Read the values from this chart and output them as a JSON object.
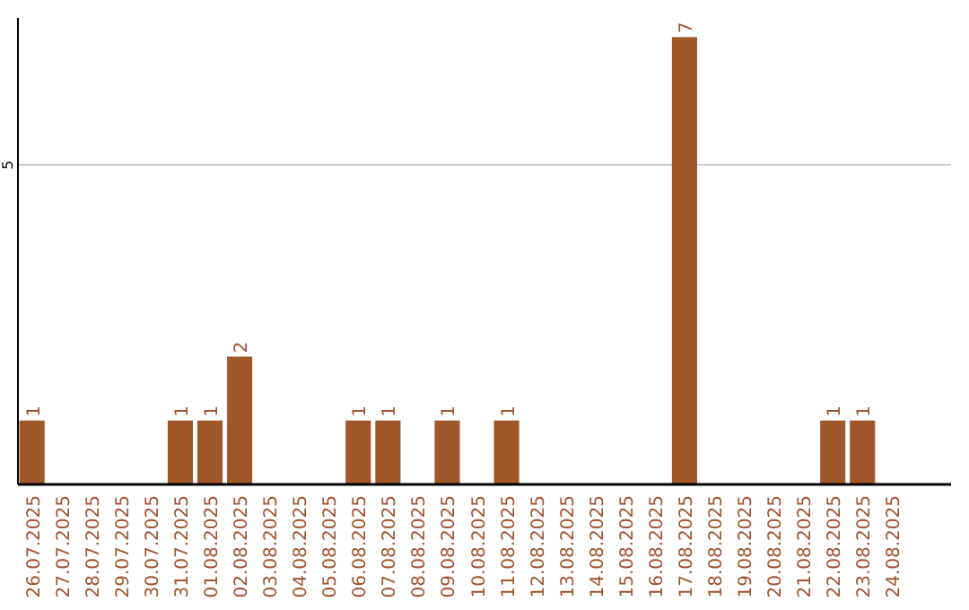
{
  "chart_data": {
    "type": "bar",
    "categories": [
      "26.07.2025",
      "27.07.2025",
      "28.07.2025",
      "29.07.2025",
      "30.07.2025",
      "31.07.2025",
      "01.08.2025",
      "02.08.2025",
      "03.08.2025",
      "04.08.2025",
      "05.08.2025",
      "06.08.2025",
      "07.08.2025",
      "08.08.2025",
      "09.08.2025",
      "10.08.2025",
      "11.08.2025",
      "12.08.2025",
      "13.08.2025",
      "14.08.2025",
      "15.08.2025",
      "16.08.2025",
      "17.08.2025",
      "18.08.2025",
      "19.08.2025",
      "20.08.2025",
      "21.08.2025",
      "22.08.2025",
      "23.08.2025",
      "24.08.2025"
    ],
    "values": [
      1,
      0,
      0,
      0,
      0,
      1,
      1,
      2,
      0,
      0,
      0,
      1,
      1,
      0,
      1,
      0,
      1,
      0,
      0,
      0,
      0,
      0,
      7,
      0,
      0,
      0,
      0,
      1,
      1,
      0
    ],
    "value_labels": [
      "1",
      null,
      null,
      null,
      null,
      "1",
      "1",
      "2",
      null,
      null,
      null,
      "1",
      "1",
      null,
      "1",
      null,
      "1",
      null,
      null,
      null,
      null,
      null,
      "7",
      null,
      null,
      null,
      null,
      "1",
      "1",
      null
    ],
    "color": "#a0572a",
    "ylim": [
      0,
      7.3
    ],
    "yticks": [
      5
    ],
    "grid": "y"
  }
}
